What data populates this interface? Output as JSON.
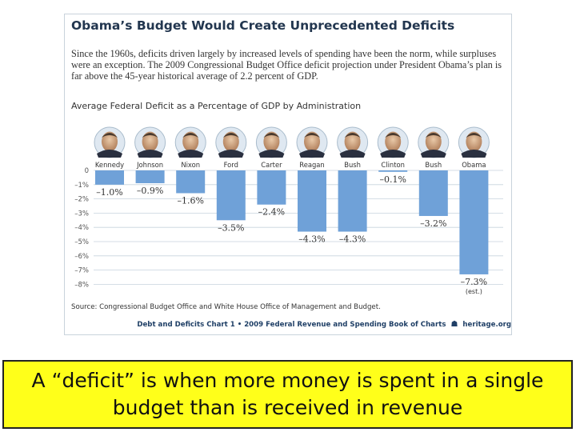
{
  "headline": "Obama’s Budget Would Create Unprecedented Deficits",
  "intro": "Since the 1960s, deficits driven largely by increased levels of spending have been the norm, while surpluses were an exception. The 2009 Congressional Budget Office deficit projection under President Obama’s plan is far above the 45-year historical average of 2.2 percent of GDP.",
  "source": "Source: Congressional Budget Office and White House Office of Management and Budget.",
  "footer": {
    "left": "Debt and Deficits Chart 1 • 2009 Federal Revenue and Spending Book of Charts",
    "site": "heritage.org"
  },
  "caption": "A “deficit” is when more money is spent in a single budget than is received in revenue",
  "colors": {
    "bar": "#6fa1d8",
    "grid": "#c7d3de",
    "title": "#22364f",
    "caption_bg": "#ffff1a"
  },
  "icons": [
    "president-portrait-icon",
    "heritage-logo-icon"
  ],
  "chart_data": {
    "type": "bar",
    "title": "Average Federal Deficit as a Percentage of GDP by Administration",
    "categories": [
      "Kennedy",
      "Johnson",
      "Nixon",
      "Ford",
      "Carter",
      "Reagan",
      "Bush",
      "Clinton",
      "Bush",
      "Obama"
    ],
    "values": [
      -1.0,
      -0.9,
      -1.6,
      -3.5,
      -2.4,
      -4.3,
      -4.3,
      -0.1,
      -3.2,
      -7.3
    ],
    "value_labels": [
      "–1.0%",
      "–0.9%",
      "–1.6%",
      "–3.5%",
      "–2.4%",
      "–4.3%",
      "–4.3%",
      "–0.1%",
      "–3.2%",
      "–7.3%"
    ],
    "annotations": [
      {
        "category_index": 9,
        "text": "(est.)"
      }
    ],
    "yticks": [
      0,
      -1,
      -2,
      -3,
      -4,
      -5,
      -6,
      -7,
      -8
    ],
    "ytick_labels": [
      "0",
      "–1%",
      "–2%",
      "–3%",
      "–4%",
      "–5%",
      "–6%",
      "–7%",
      "–8%"
    ],
    "ylim": [
      -8,
      0
    ],
    "grid": true,
    "xlabel": "",
    "ylabel": ""
  }
}
